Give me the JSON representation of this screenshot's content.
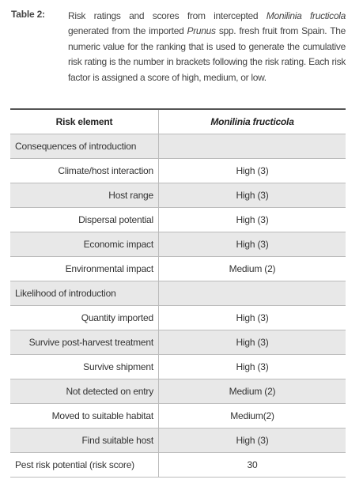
{
  "caption": {
    "label": "Table 2:",
    "parts": [
      "Risk ratings and scores from intercepted ",
      "Monilinia fructicola",
      " generated from the imported ",
      "Prunus",
      " spp. fresh fruit from Spain. The numeric value for the ranking that is used to generate the cumulative risk rating is the number in brackets following the risk rating. Each risk factor is assigned a score of high, medium, or low."
    ]
  },
  "table": {
    "header": [
      "Risk element",
      "Monilinia fructicola"
    ],
    "rows": [
      [
        "Consequences of introduction"
      ],
      [
        "Climate/host interaction",
        "High (3)"
      ],
      [
        "Host range",
        "High (3)"
      ],
      [
        "Dispersal potential",
        "High (3)"
      ],
      [
        "Economic impact",
        "High (3)"
      ],
      [
        "Environmental impact",
        "Medium (2)"
      ],
      [
        "Likelihood of introduction"
      ],
      [
        "Quantity imported",
        "High (3)"
      ],
      [
        "Survive post-harvest treatment",
        "High (3)"
      ],
      [
        "Survive shipment",
        "High (3)"
      ],
      [
        "Not detected on entry",
        "Medium (2)"
      ],
      [
        "Moved to suitable habitat",
        "Medium(2)"
      ],
      [
        "Find suitable host",
        "High (3)"
      ],
      [
        "Pest risk potential (risk score)",
        "30"
      ]
    ]
  }
}
